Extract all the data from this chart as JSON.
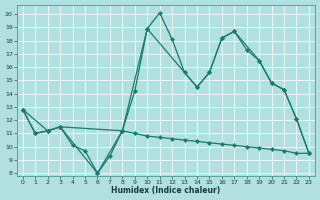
{
  "xlabel": "Humidex (Indice chaleur)",
  "bg_color": "#b2dfdf",
  "line_color": "#1a7a6e",
  "grid_color": "#ffffff",
  "xlim": [
    -0.5,
    23.5
  ],
  "ylim": [
    7.8,
    20.7
  ],
  "xticks": [
    0,
    1,
    2,
    3,
    4,
    5,
    6,
    7,
    8,
    9,
    10,
    11,
    12,
    13,
    14,
    15,
    16,
    17,
    18,
    19,
    20,
    21,
    22,
    23
  ],
  "yticks": [
    8,
    9,
    10,
    11,
    12,
    13,
    14,
    15,
    16,
    17,
    18,
    19,
    20
  ],
  "line1_x": [
    0,
    1,
    2,
    3,
    4,
    5,
    6,
    7,
    8,
    9,
    10,
    11,
    12,
    13,
    14,
    15,
    16,
    17,
    18,
    19,
    20,
    21,
    22,
    23
  ],
  "line1_y": [
    12.8,
    11.0,
    11.2,
    11.5,
    10.1,
    9.7,
    8.0,
    9.3,
    11.2,
    14.2,
    18.9,
    20.1,
    18.1,
    15.6,
    14.5,
    15.6,
    18.2,
    18.7,
    17.3,
    16.5,
    14.8,
    14.3,
    12.1,
    9.5
  ],
  "line2_x": [
    0,
    2,
    3,
    6,
    8,
    10,
    14,
    15,
    16,
    17,
    19,
    20,
    21,
    22,
    23
  ],
  "line2_y": [
    12.8,
    11.2,
    11.5,
    8.0,
    11.2,
    18.9,
    14.5,
    15.6,
    18.2,
    18.7,
    16.5,
    14.8,
    14.3,
    12.1,
    9.5
  ],
  "line3_x": [
    0,
    1,
    2,
    3,
    8,
    9,
    10,
    11,
    12,
    13,
    14,
    15,
    16,
    17,
    18,
    19,
    20,
    21,
    22,
    23
  ],
  "line3_y": [
    12.8,
    11.0,
    11.2,
    11.5,
    11.2,
    11.0,
    10.8,
    10.7,
    10.6,
    10.5,
    10.4,
    10.3,
    10.2,
    10.1,
    10.0,
    9.9,
    9.8,
    9.7,
    9.5,
    9.5
  ]
}
